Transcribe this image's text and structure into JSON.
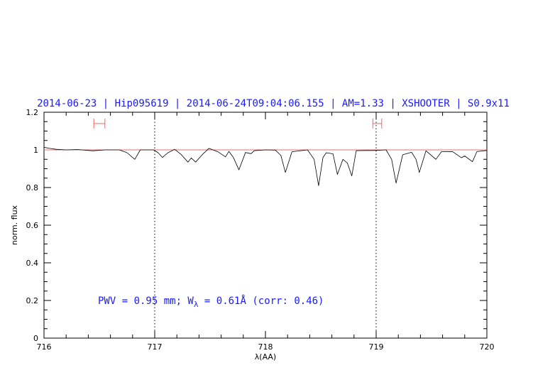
{
  "chart_data": {
    "type": "line",
    "title": "2014-06-23 | Hip095619 | 2014-06-24T09:04:06.155 | AM=1.33 | XSHOOTER | S0.9x11",
    "xlabel": "λ(AA)",
    "ylabel": "norm. flux",
    "xlim": [
      716,
      720
    ],
    "ylim": [
      0,
      1.2
    ],
    "x_ticks": [
      "716",
      "717",
      "718",
      "719",
      "720"
    ],
    "y_ticks": [
      "0",
      "0.2",
      "0.4",
      "0.6",
      "0.8",
      "1",
      "1.2"
    ],
    "grid": false,
    "vertical_dotted_lines": [
      717,
      719
    ],
    "continuum_level": 1.0,
    "annotation": {
      "prefix": "PWV = 0.95 mm; W",
      "subscript": "λ",
      "suffix": " = 0.61Å (corr: 0.46)"
    },
    "range_markers": [
      [
        716.45,
        716.55
      ],
      [
        718.97,
        719.05
      ]
    ],
    "range_marker_level": 1.14,
    "colors": {
      "spectrum": "#000000",
      "continuum": "#e07070",
      "markers": "#ff6060",
      "text": "#1a1aff"
    },
    "series": [
      {
        "x": [
          716.0,
          716.05,
          716.11,
          716.2,
          716.3,
          716.44,
          716.55,
          716.68,
          716.75,
          716.82,
          716.87,
          716.99,
          717.03,
          717.07,
          717.12,
          717.18,
          717.24,
          717.3,
          717.33,
          717.37,
          717.43,
          717.49,
          717.57,
          717.64,
          717.67,
          717.71,
          717.76,
          717.82,
          717.87,
          717.9,
          718.0,
          718.09,
          718.14,
          718.18,
          718.24,
          718.38,
          718.44,
          718.48,
          718.52,
          718.55,
          718.61,
          718.65,
          718.7,
          718.74,
          718.78,
          718.82,
          718.98,
          719.09,
          719.14,
          719.18,
          719.24,
          719.32,
          719.36,
          719.39,
          719.45,
          719.54,
          719.59,
          719.69,
          719.77,
          719.8,
          719.87,
          719.91,
          720.0
        ],
        "y": [
          1.014,
          1.008,
          1.003,
          1.0,
          1.002,
          0.995,
          1.0,
          1.0,
          0.985,
          0.95,
          1.0,
          1.0,
          0.985,
          0.96,
          0.985,
          1.003,
          0.975,
          0.935,
          0.957,
          0.935,
          0.975,
          1.008,
          0.99,
          0.963,
          0.992,
          0.96,
          0.894,
          0.986,
          0.98,
          0.996,
          1.0,
          0.999,
          0.97,
          0.88,
          0.99,
          1.0,
          0.95,
          0.81,
          0.96,
          0.985,
          0.979,
          0.87,
          0.95,
          0.93,
          0.862,
          0.996,
          0.997,
          1.0,
          0.95,
          0.824,
          0.974,
          0.987,
          0.95,
          0.88,
          0.995,
          0.95,
          0.99,
          0.991,
          0.958,
          0.968,
          0.937,
          0.991,
          0.997
        ]
      }
    ]
  }
}
